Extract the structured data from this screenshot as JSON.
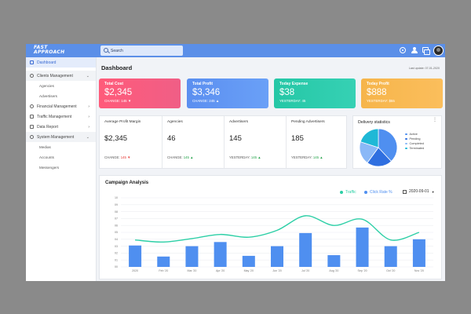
{
  "app": {
    "logo_line1": "FAST",
    "logo_line2": "APPROACH"
  },
  "search": {
    "placeholder": "Search"
  },
  "sidebar": {
    "dashboard": "Dashboard",
    "clients_management": "Clients Management",
    "agencies": "Agencies",
    "advertisers": "Advertisers",
    "financial_management": "Financial Management",
    "traffic_management": "Traffic Management",
    "data_report": "Data Report",
    "system_management": "System Management",
    "medias": "Medias",
    "accounts": "Accounts",
    "messengers": "Messengers"
  },
  "header": {
    "title": "Dashboard",
    "last_update": "Last update: 07-01-2020"
  },
  "kpis": [
    {
      "title": "Total Cost",
      "value": "$2,345",
      "sub_label": "CHANGE:",
      "sub_value": "145",
      "arrow": "▼"
    },
    {
      "title": "Total Profit",
      "value": "$3,346",
      "sub_label": "CHANGE:",
      "sub_value": "245",
      "arrow": "▲"
    },
    {
      "title": "Today Expense",
      "value": "$38",
      "sub_label": "YESTERDAY:",
      "sub_value": "45",
      "arrow": ""
    },
    {
      "title": "Today Profit",
      "value": "$888",
      "sub_label": "YESTERDAY:",
      "sub_value": "$55",
      "arrow": ""
    }
  ],
  "stats": [
    {
      "title": "Average Profit Margin",
      "value": "$2,345",
      "sub_label": "CHANGE:",
      "sub_value": "145",
      "arrow": "▼"
    },
    {
      "title": "Agencies",
      "value": "46",
      "sub_label": "CHANGE:",
      "sub_value": "145",
      "arrow": "▲"
    },
    {
      "title": "Advertisers",
      "value": "145",
      "sub_label": "YESTERDAY:",
      "sub_value": "145",
      "arrow": "▲"
    },
    {
      "title": "Pending Advertisers",
      "value": "185",
      "sub_label": "YESTERDAY:",
      "sub_value": "145",
      "arrow": "▲"
    }
  ],
  "delivery": {
    "title": "Delivery statistics",
    "more": "⋮",
    "legend": [
      {
        "label": "Active",
        "color": "#4f8ff0",
        "share": 0.38
      },
      {
        "label": "Pending",
        "color": "#2f6fe0",
        "share": 0.22
      },
      {
        "label": "Completed",
        "color": "#8ab8f7",
        "share": 0.2
      },
      {
        "label": "Terminated",
        "color": "#1fb8d6",
        "share": 0.2
      }
    ]
  },
  "campaign": {
    "title": "Campaign Analysis",
    "legend_traffic": "Traffic",
    "legend_rate": "Click Rate %",
    "date": "2020-09-01",
    "traffic_color": "#2ccfa6",
    "bar_color": "#4f8ff0"
  },
  "chart_data": {
    "type": "bar",
    "title": "Campaign Analysis",
    "categories": [
      "2020",
      "Feb '20",
      "Mar '20",
      "Apr '20",
      "May '20",
      "Jun '20",
      "Jul '20",
      "Aug '20",
      "Sep '20",
      "Oct '20",
      "Nov '20"
    ],
    "ylim": [
      0,
      10
    ],
    "yticks": [
      "00",
      "01",
      "02",
      "03",
      "04",
      "05",
      "06",
      "07",
      "08",
      "09",
      "10"
    ],
    "series": [
      {
        "name": "Click Rate %",
        "kind": "bar",
        "values": [
          3.1,
          1.5,
          3.0,
          3.6,
          1.6,
          3.0,
          4.9,
          1.7,
          5.7,
          3.0,
          4.0
        ]
      },
      {
        "name": "Traffic",
        "kind": "line",
        "values": [
          3.9,
          3.6,
          4.1,
          4.7,
          4.3,
          5.3,
          7.4,
          6.0,
          6.9,
          3.9,
          5.0
        ]
      }
    ]
  }
}
